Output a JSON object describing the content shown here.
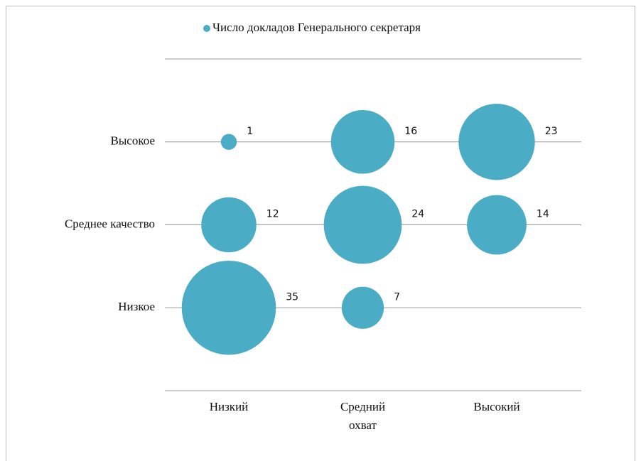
{
  "chart_data": {
    "type": "bubble",
    "x_categories": [
      "Низкий",
      "Средний охват",
      "Высокий"
    ],
    "y_categories": [
      "Низкое",
      "Среднее качество",
      "Высокое"
    ],
    "series": [
      {
        "name": "Число докладов Генерального секретаря",
        "color": "#4bacc6",
        "x": [
          "Низкий",
          "Средний охват",
          "Высокий",
          "Низкий",
          "Средний охват",
          "Высокий",
          "Низкий",
          "Средний охват"
        ],
        "y": [
          "Высокое",
          "Высокое",
          "Высокое",
          "Среднее качество",
          "Среднее качество",
          "Среднее качество",
          "Низкое",
          "Низкое"
        ],
        "values": [
          1,
          16,
          23,
          12,
          24,
          14,
          35,
          7
        ]
      }
    ],
    "grid": true,
    "legend": "top"
  }
}
